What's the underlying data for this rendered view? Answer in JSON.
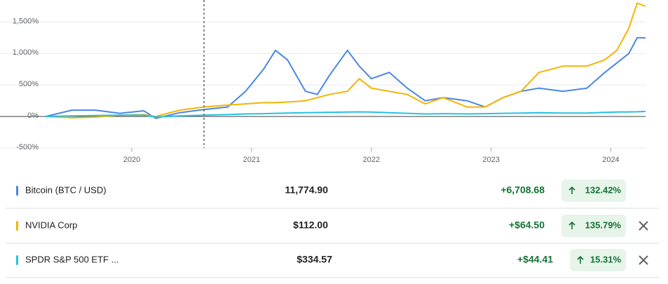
{
  "chart_data": {
    "type": "line",
    "x": [
      2019.28,
      2019.5,
      2019.7,
      2019.9,
      2020.1,
      2020.2,
      2020.4,
      2020.6,
      2020.8,
      2020.95,
      2021.1,
      2021.2,
      2021.3,
      2021.45,
      2021.55,
      2021.65,
      2021.8,
      2021.9,
      2022.0,
      2022.15,
      2022.3,
      2022.45,
      2022.6,
      2022.8,
      2022.95,
      2023.1,
      2023.25,
      2023.4,
      2023.6,
      2023.8,
      2023.95,
      2024.05,
      2024.15,
      2024.22,
      2024.29
    ],
    "series": [
      {
        "name": "Bitcoin (BTC / USD)",
        "color": "#4a86e8",
        "values": [
          0,
          100,
          100,
          50,
          90,
          -30,
          60,
          110,
          150,
          400,
          750,
          1050,
          900,
          400,
          350,
          650,
          1050,
          800,
          600,
          700,
          450,
          250,
          300,
          250,
          150,
          300,
          400,
          450,
          400,
          450,
          700,
          850,
          1000,
          1250,
          1250
        ]
      },
      {
        "name": "NVIDIA Corp",
        "color": "#f4b400",
        "values": [
          0,
          -20,
          -10,
          20,
          30,
          0,
          100,
          150,
          180,
          200,
          220,
          220,
          230,
          250,
          300,
          350,
          400,
          600,
          450,
          400,
          350,
          200,
          300,
          150,
          150,
          300,
          400,
          700,
          800,
          800,
          900,
          1050,
          1400,
          1800,
          1750
        ]
      },
      {
        "name": "SPDR S&P 500 ETF ...",
        "color": "#24c1e0",
        "values": [
          0,
          10,
          15,
          20,
          20,
          -10,
          10,
          20,
          30,
          40,
          45,
          50,
          55,
          60,
          62,
          65,
          70,
          72,
          70,
          60,
          50,
          40,
          45,
          40,
          45,
          50,
          55,
          60,
          55,
          55,
          65,
          70,
          72,
          75,
          80
        ]
      }
    ],
    "xlim": [
      2019.28,
      2024.29
    ],
    "xticks": [
      2020,
      2021,
      2022,
      2023,
      2024
    ],
    "ylim": [
      -500,
      1850
    ],
    "yticks": [
      {
        "value": -500,
        "label": "-500%"
      },
      {
        "value": 0,
        "label": "0%"
      },
      {
        "value": 500,
        "label": "500%"
      },
      {
        "value": 1000,
        "label": "1,000%"
      },
      {
        "value": 1500,
        "label": "1,500%"
      }
    ],
    "grid": true
  },
  "rows": [
    {
      "price": "11,774.90",
      "change": "+6,708.68",
      "percent": "132.42%",
      "removable": false
    },
    {
      "price": "$112.00",
      "change": "+$64.50",
      "percent": "135.79%",
      "removable": true
    },
    {
      "price": "$334.57",
      "change": "+$44.41",
      "percent": "15.31%",
      "removable": true
    }
  ]
}
